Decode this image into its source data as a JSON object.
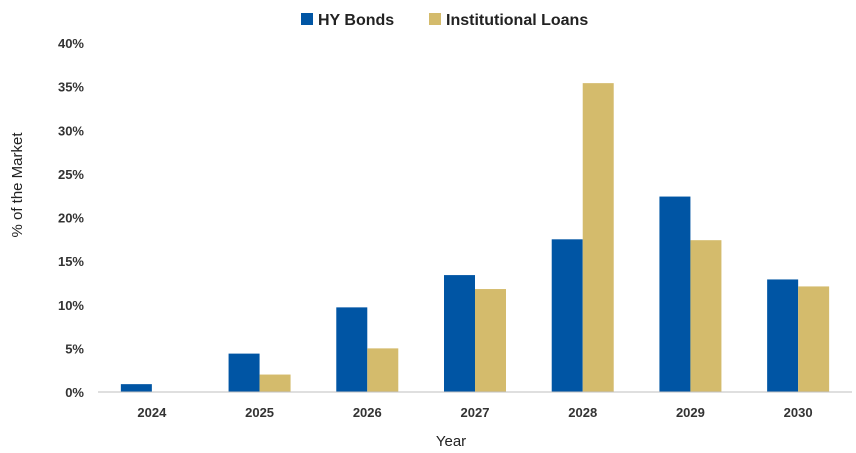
{
  "chart_data": {
    "type": "bar",
    "title": "",
    "xlabel": "Year",
    "ylabel": "% of the Market",
    "categories": [
      "2024",
      "2025",
      "2026",
      "2027",
      "2028",
      "2029",
      "2030"
    ],
    "ylim": [
      0,
      40
    ],
    "yticks": [
      "0%",
      "5%",
      "10%",
      "15%",
      "20%",
      "25%",
      "30%",
      "35%",
      "40%"
    ],
    "ytick_values": [
      0,
      5,
      10,
      15,
      20,
      25,
      30,
      35,
      40
    ],
    "grid": false,
    "legend_position": "top-center",
    "series": [
      {
        "name": "HY Bonds",
        "color": "#0055A4",
        "values": [
          0.9,
          4.4,
          9.7,
          13.4,
          17.5,
          22.4,
          12.9
        ]
      },
      {
        "name": "Institutional Loans",
        "color": "#D4BB6C",
        "values": [
          0.0,
          2.0,
          5.0,
          11.8,
          35.4,
          17.4,
          12.1
        ]
      }
    ]
  }
}
